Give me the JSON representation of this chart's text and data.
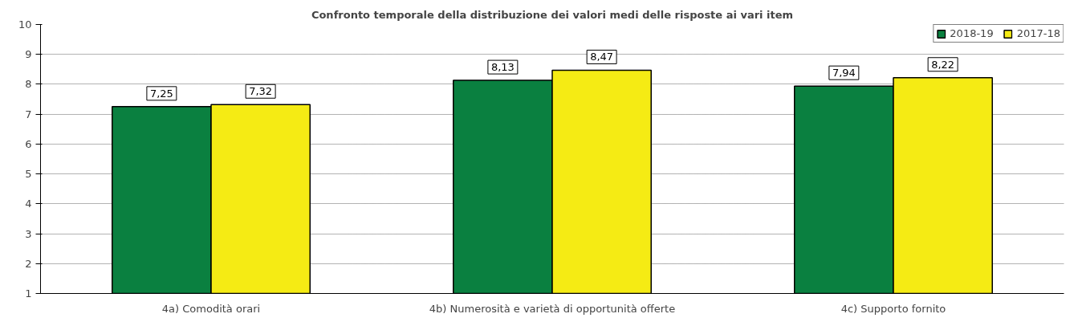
{
  "chart_data": {
    "type": "bar",
    "title": "Confronto temporale della distribuzione dei valori medi delle risposte ai vari item",
    "categories": [
      "4a) Comodità orari",
      "4b) Numerosità e varietà di opportunità offerte",
      "4c) Supporto fornito"
    ],
    "series": [
      {
        "name": "2018-19",
        "color": "#0a8040",
        "values": [
          7.25,
          8.13,
          7.94
        ],
        "value_labels": [
          "7,25",
          "8,13",
          "7,94"
        ]
      },
      {
        "name": "2017-18",
        "color": "#f5eb14",
        "values": [
          7.32,
          8.47,
          8.22
        ],
        "value_labels": [
          "7,32",
          "8,47",
          "8,22"
        ]
      }
    ],
    "ylim": [
      1,
      10
    ],
    "yticks": [
      1,
      2,
      3,
      4,
      5,
      6,
      7,
      8,
      9,
      10
    ],
    "grid": "y",
    "legend": "top right"
  }
}
